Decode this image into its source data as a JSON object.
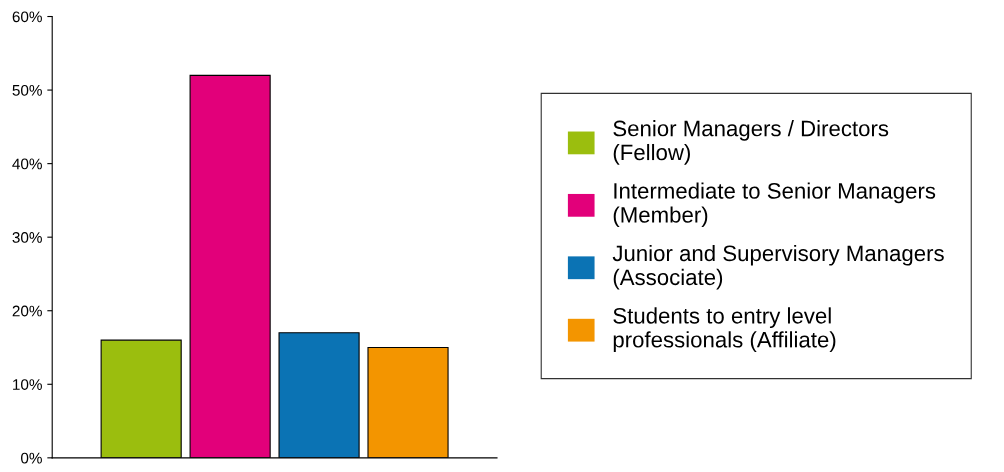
{
  "chart_data": {
    "type": "bar",
    "categories": [
      null,
      null,
      null,
      null
    ],
    "series": [
      {
        "name": "Senior Managers / Directors\n(Fellow)",
        "color": "#9bbe0e",
        "values": [
          16,
          null,
          null,
          null
        ]
      },
      {
        "name": "Intermediate to Senior Managers\n(Member)",
        "color": "#e2007a",
        "values": [
          null,
          52,
          null,
          null
        ]
      },
      {
        "name": "Junior and Supervisory Managers\n(Associate)",
        "color": "#0b73b4",
        "values": [
          null,
          null,
          17,
          null
        ]
      },
      {
        "name": "Students to entry level\nprofessionals (Affiliate)",
        "color": "#f39500",
        "values": [
          null,
          null,
          null,
          15
        ]
      }
    ],
    "ylim": [
      0,
      60
    ],
    "yticks": [
      {
        "value": 0,
        "label": "0%"
      },
      {
        "value": 10,
        "label": "10%"
      },
      {
        "value": 20,
        "label": "20%"
      },
      {
        "value": 30,
        "label": "30%"
      },
      {
        "value": 40,
        "label": "40%"
      },
      {
        "value": 50,
        "label": "50%"
      },
      {
        "value": 60,
        "label": "60%"
      }
    ],
    "grid": false,
    "legend": "right"
  }
}
